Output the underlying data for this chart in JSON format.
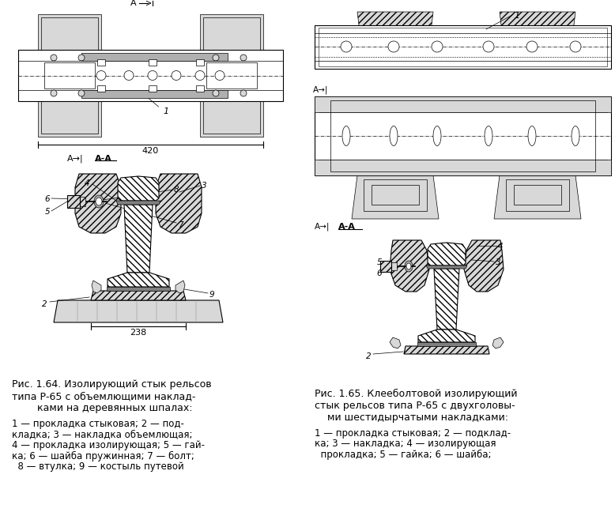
{
  "background_color": "#ffffff",
  "fig_width": 7.78,
  "fig_height": 6.72,
  "dpi": 100,
  "caption_left_title": "Рис. 1.64. Изолирующий стык рельсов\nтипа Р-65 с объемлющими наклад-\n        ками на деревянных шпалах:",
  "caption_left_lines": [
    "1 — прокладка стыковая; 2 — под-",
    "кладка; 3 — накладка объемлющая;",
    "4 — прокладка изолирующая; 5 — гай-",
    "ка; 6 — шайба пружинная; 7 — болт;",
    "  8 — втулка; 9 — костыль путевой"
  ],
  "caption_right_title": "Рис. 1.65. Клееболтовой изолирующий\nстык рельсов типа Р-65 с двухголовы-\n    ми шестидырчатыми накладками:",
  "caption_right_lines": [
    "1 — прокладка стыковая; 2 — подклад-",
    "ка; 3 — накладка; 4 — изолирующая",
    "  прокладка; 5 — гайка; 6 — шайба;"
  ],
  "text_color": "#000000",
  "font_size": 9.0
}
